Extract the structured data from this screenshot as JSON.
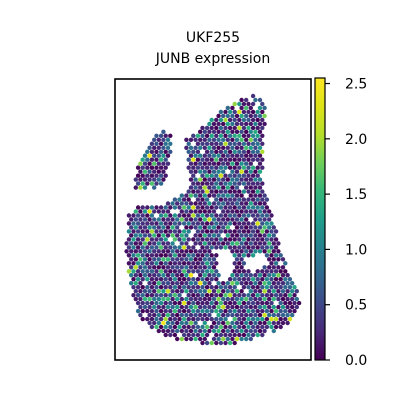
{
  "chart_data": {
    "type": "scatter",
    "title_lines": [
      "UKF255",
      "JUNB expression"
    ],
    "xlabel": "",
    "ylabel": "",
    "xticks_shown": false,
    "yticks_shown": false,
    "grid": false,
    "colormap": "viridis",
    "colorbar": {
      "range": [
        0.0,
        2.55
      ],
      "ticks": [
        0.0,
        0.5,
        1.0,
        1.5,
        2.0,
        2.5
      ],
      "tick_labels": [
        "0.0",
        "0.5",
        "1.0",
        "1.5",
        "2.0",
        "2.5"
      ],
      "placement": "right"
    },
    "colors": {
      "low": "#440154",
      "mid": "#21918c",
      "high": "#fde725",
      "frame": "#000000",
      "background": "#ffffff"
    }
  }
}
